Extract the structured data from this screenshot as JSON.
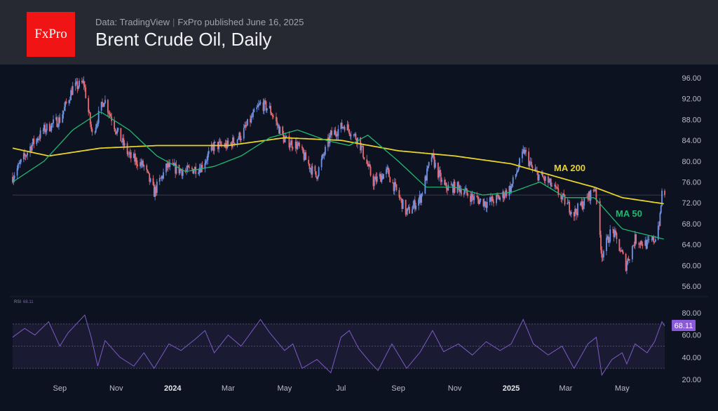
{
  "header": {
    "logo": "FxPro",
    "source": "Data: TradingView",
    "published": "FxPro published June 16, 2025",
    "title": "Brent Crude Oil, Daily"
  },
  "colors": {
    "up": "#6f93e6",
    "down": "#e86c74",
    "ma200": "#e6d22a",
    "ma50": "#1fb870",
    "rsi": "#7c5cc4",
    "rsi_badge": "#8a5ad8"
  },
  "chart_data": {
    "type": "candlestick",
    "title": "Brent Crude Oil, Daily",
    "x_range": [
      "2023-07-12",
      "2025-06-16"
    ],
    "x_ticks": [
      {
        "date": "2023-09-01",
        "label": "Sep"
      },
      {
        "date": "2023-11-01",
        "label": "Nov"
      },
      {
        "date": "2024-01-01",
        "label": "2024"
      },
      {
        "date": "2024-03-01",
        "label": "Mar"
      },
      {
        "date": "2024-05-01",
        "label": "May"
      },
      {
        "date": "2024-07-01",
        "label": "Jul"
      },
      {
        "date": "2024-09-01",
        "label": "Sep"
      },
      {
        "date": "2024-11-01",
        "label": "Nov"
      },
      {
        "date": "2025-01-01",
        "label": "2025"
      },
      {
        "date": "2025-03-01",
        "label": "Mar"
      },
      {
        "date": "2025-05-01",
        "label": "May"
      }
    ],
    "price_axis": {
      "ylim": [
        54,
        98
      ],
      "ticks": [
        "96.00",
        "92.00",
        "88.00",
        "84.00",
        "80.00",
        "76.00",
        "72.00",
        "68.00",
        "64.00",
        "60.00",
        "56.00"
      ]
    },
    "price_line": 73.5,
    "close": [
      [
        "2023-07-12",
        77
      ],
      [
        "2023-08-01",
        83
      ],
      [
        "2023-08-15",
        86
      ],
      [
        "2023-09-01",
        88
      ],
      [
        "2023-09-15",
        94
      ],
      [
        "2023-09-27",
        95
      ],
      [
        "2023-10-06",
        85
      ],
      [
        "2023-10-19",
        92
      ],
      [
        "2023-11-01",
        86
      ],
      [
        "2023-11-15",
        81
      ],
      [
        "2023-12-01",
        79
      ],
      [
        "2023-12-12",
        74
      ],
      [
        "2023-12-26",
        79
      ],
      [
        "2024-01-15",
        78
      ],
      [
        "2024-02-01",
        79
      ],
      [
        "2024-02-15",
        83
      ],
      [
        "2024-03-01",
        83
      ],
      [
        "2024-03-15",
        85
      ],
      [
        "2024-04-05",
        91
      ],
      [
        "2024-04-15",
        90
      ],
      [
        "2024-05-01",
        84
      ],
      [
        "2024-05-15",
        83
      ],
      [
        "2024-06-04",
        77
      ],
      [
        "2024-06-20",
        85
      ],
      [
        "2024-07-05",
        87
      ],
      [
        "2024-07-20",
        84
      ],
      [
        "2024-08-05",
        76
      ],
      [
        "2024-08-20",
        78
      ],
      [
        "2024-09-10",
        70
      ],
      [
        "2024-09-25",
        73
      ],
      [
        "2024-10-07",
        81
      ],
      [
        "2024-10-20",
        75
      ],
      [
        "2024-11-05",
        75
      ],
      [
        "2024-11-20",
        73
      ],
      [
        "2024-12-05",
        72
      ],
      [
        "2024-12-20",
        73
      ],
      [
        "2025-01-01",
        75
      ],
      [
        "2025-01-15",
        82
      ],
      [
        "2025-01-25",
        78
      ],
      [
        "2025-02-10",
        76
      ],
      [
        "2025-02-25",
        73
      ],
      [
        "2025-03-10",
        70
      ],
      [
        "2025-03-25",
        73
      ],
      [
        "2025-04-02",
        75
      ],
      [
        "2025-04-09",
        62
      ],
      [
        "2025-04-20",
        67
      ],
      [
        "2025-05-01",
        62
      ],
      [
        "2025-05-05",
        60
      ],
      [
        "2025-05-15",
        65
      ],
      [
        "2025-05-28",
        64
      ],
      [
        "2025-06-05",
        65
      ],
      [
        "2025-06-11",
        69
      ],
      [
        "2025-06-13",
        74
      ],
      [
        "2025-06-16",
        73.5
      ]
    ],
    "series": [
      {
        "name": "MA 200",
        "values": [
          [
            "2023-07-12",
            82.5
          ],
          [
            "2023-08-20",
            81
          ],
          [
            "2023-10-15",
            82.5
          ],
          [
            "2023-12-15",
            83
          ],
          [
            "2024-03-01",
            83
          ],
          [
            "2024-05-01",
            84.5
          ],
          [
            "2024-07-01",
            84
          ],
          [
            "2024-09-01",
            82
          ],
          [
            "2024-11-01",
            81
          ],
          [
            "2025-01-01",
            79.5
          ],
          [
            "2025-03-01",
            76.5
          ],
          [
            "2025-04-01",
            75
          ],
          [
            "2025-05-01",
            73
          ],
          [
            "2025-06-16",
            71.8
          ]
        ]
      },
      {
        "name": "MA 50",
        "values": [
          [
            "2023-07-12",
            76
          ],
          [
            "2023-08-15",
            80
          ],
          [
            "2023-09-15",
            86
          ],
          [
            "2023-10-15",
            89.5
          ],
          [
            "2023-11-15",
            86
          ],
          [
            "2023-12-15",
            81
          ],
          [
            "2024-01-15",
            78
          ],
          [
            "2024-02-15",
            79
          ],
          [
            "2024-03-15",
            81
          ],
          [
            "2024-04-15",
            84.5
          ],
          [
            "2024-05-15",
            86
          ],
          [
            "2024-06-15",
            84
          ],
          [
            "2024-07-10",
            83
          ],
          [
            "2024-07-30",
            85
          ],
          [
            "2024-09-01",
            80
          ],
          [
            "2024-10-01",
            75
          ],
          [
            "2024-11-01",
            75
          ],
          [
            "2024-12-01",
            73.5
          ],
          [
            "2025-01-01",
            74
          ],
          [
            "2025-02-01",
            76
          ],
          [
            "2025-03-01",
            73
          ],
          [
            "2025-04-01",
            73
          ],
          [
            "2025-05-01",
            67
          ],
          [
            "2025-06-16",
            65
          ]
        ]
      }
    ],
    "rsi": {
      "label": "RSI",
      "value": "68.11",
      "ylim": [
        20,
        80
      ],
      "ticks": [
        "80.00",
        "60.00",
        "40.00",
        "20.00"
      ],
      "bands": [
        70,
        50,
        30
      ],
      "values": [
        [
          "2023-07-12",
          58
        ],
        [
          "2023-07-25",
          66
        ],
        [
          "2023-08-05",
          60
        ],
        [
          "2023-08-20",
          72
        ],
        [
          "2023-09-01",
          50
        ],
        [
          "2023-09-10",
          62
        ],
        [
          "2023-09-28",
          78
        ],
        [
          "2023-10-05",
          58
        ],
        [
          "2023-10-12",
          32
        ],
        [
          "2023-10-20",
          55
        ],
        [
          "2023-11-05",
          40
        ],
        [
          "2023-11-20",
          32
        ],
        [
          "2023-12-01",
          44
        ],
        [
          "2023-12-12",
          30
        ],
        [
          "2023-12-28",
          52
        ],
        [
          "2024-01-10",
          46
        ],
        [
          "2024-01-25",
          56
        ],
        [
          "2024-02-05",
          64
        ],
        [
          "2024-02-15",
          44
        ],
        [
          "2024-03-01",
          60
        ],
        [
          "2024-03-15",
          50
        ],
        [
          "2024-04-05",
          74
        ],
        [
          "2024-04-15",
          62
        ],
        [
          "2024-05-01",
          46
        ],
        [
          "2024-05-10",
          52
        ],
        [
          "2024-05-20",
          30
        ],
        [
          "2024-06-05",
          38
        ],
        [
          "2024-06-20",
          26
        ],
        [
          "2024-07-01",
          58
        ],
        [
          "2024-07-10",
          64
        ],
        [
          "2024-07-20",
          48
        ],
        [
          "2024-08-01",
          36
        ],
        [
          "2024-08-10",
          28
        ],
        [
          "2024-08-25",
          52
        ],
        [
          "2024-09-10",
          30
        ],
        [
          "2024-09-25",
          45
        ],
        [
          "2024-10-08",
          64
        ],
        [
          "2024-10-20",
          45
        ],
        [
          "2024-11-05",
          52
        ],
        [
          "2024-11-20",
          42
        ],
        [
          "2024-12-05",
          54
        ],
        [
          "2024-12-20",
          46
        ],
        [
          "2025-01-01",
          52
        ],
        [
          "2025-01-14",
          74
        ],
        [
          "2025-01-25",
          52
        ],
        [
          "2025-02-10",
          42
        ],
        [
          "2025-02-25",
          50
        ],
        [
          "2025-03-10",
          30
        ],
        [
          "2025-03-25",
          52
        ],
        [
          "2025-04-03",
          58
        ],
        [
          "2025-04-09",
          24
        ],
        [
          "2025-04-20",
          38
        ],
        [
          "2025-05-01",
          44
        ],
        [
          "2025-05-06",
          34
        ],
        [
          "2025-05-15",
          52
        ],
        [
          "2025-05-28",
          44
        ],
        [
          "2025-06-05",
          54
        ],
        [
          "2025-06-13",
          72
        ],
        [
          "2025-06-16",
          68.11
        ]
      ]
    }
  },
  "labels": {
    "ma200": "MA 200",
    "ma50": "MA 50"
  }
}
